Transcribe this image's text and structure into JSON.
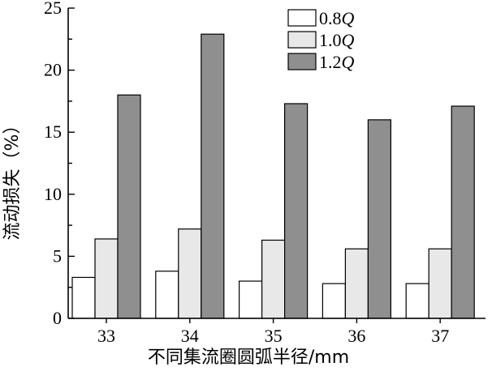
{
  "chart_data": {
    "type": "bar",
    "categories": [
      "33",
      "34",
      "35",
      "36",
      "37"
    ],
    "series": [
      {
        "name": "0.8",
        "name_suffix": "Q",
        "color": "#ffffff",
        "values": [
          3.3,
          3.8,
          3.0,
          2.8,
          2.8
        ]
      },
      {
        "name": "1.0",
        "name_suffix": "Q",
        "color": "#e8e8e8",
        "values": [
          6.4,
          7.2,
          6.3,
          5.6,
          5.6
        ]
      },
      {
        "name": "1.2",
        "name_suffix": "Q",
        "color": "#8f8f8f",
        "values": [
          18.0,
          22.9,
          17.3,
          16.0,
          17.1
        ]
      }
    ],
    "xlabel": "不同集流圈圆弧半径/mm",
    "ylabel": "流动损失（%）",
    "ylim": [
      0,
      25
    ],
    "yticks": [
      "0",
      "5",
      "10",
      "15",
      "20",
      "25"
    ],
    "grid": false,
    "legend_position": "top-right"
  }
}
